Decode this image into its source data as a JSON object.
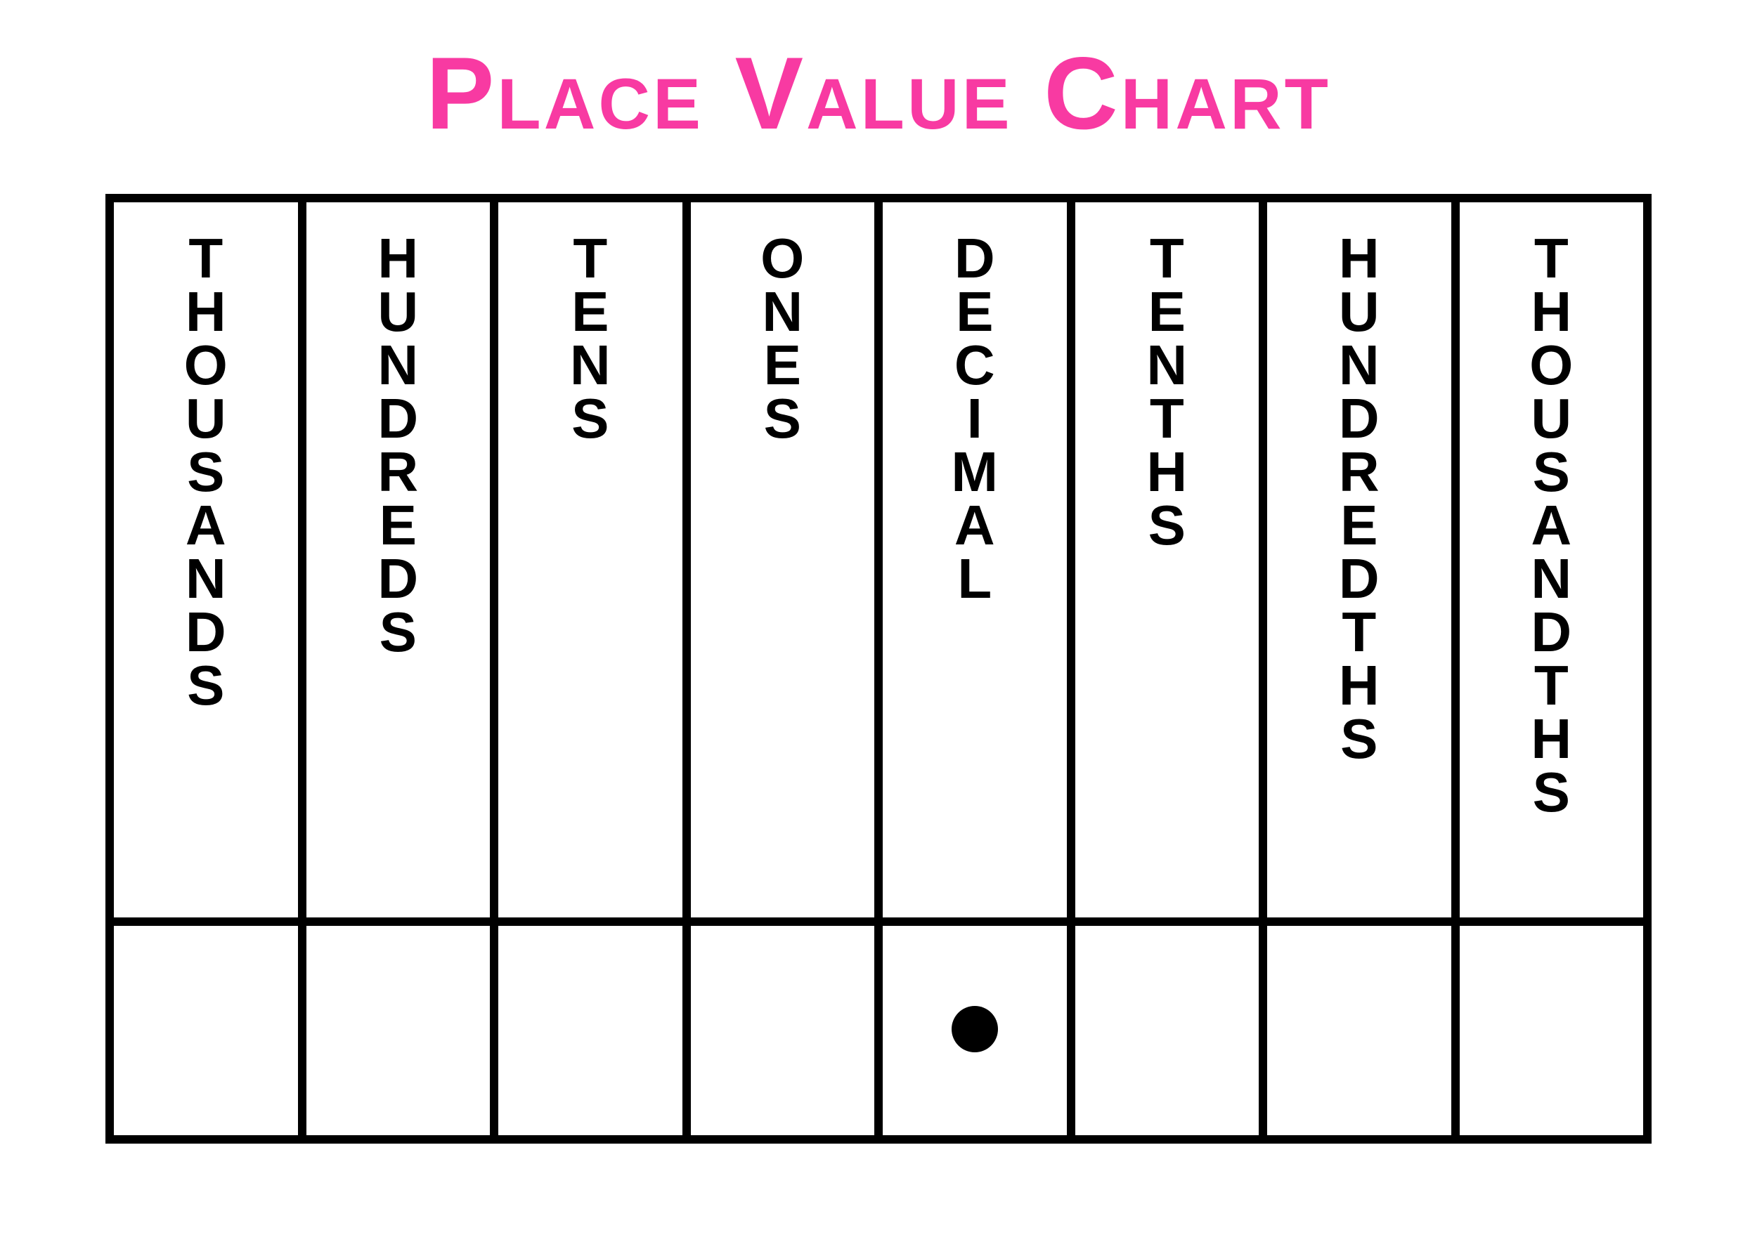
{
  "title": "Place Value Chart",
  "title_color": "#f83aa2",
  "title_fontsize": 146,
  "border_color": "#000000",
  "border_width": 12,
  "background_color": "#ffffff",
  "label_color": "#000000",
  "label_fontsize": 80,
  "decimal_dot_color": "#000000",
  "decimal_dot_diameter": 66,
  "columns": [
    {
      "label": "THOUSANDS",
      "value": ""
    },
    {
      "label": "HUNDREDS",
      "value": ""
    },
    {
      "label": "TENS",
      "value": ""
    },
    {
      "label": "ONES",
      "value": ""
    },
    {
      "label": "DECIMAL",
      "value": "•"
    },
    {
      "label": "TENTHS",
      "value": ""
    },
    {
      "label": "HUNDREDTHS",
      "value": ""
    },
    {
      "label": "THOUSANDTHS",
      "value": ""
    }
  ]
}
